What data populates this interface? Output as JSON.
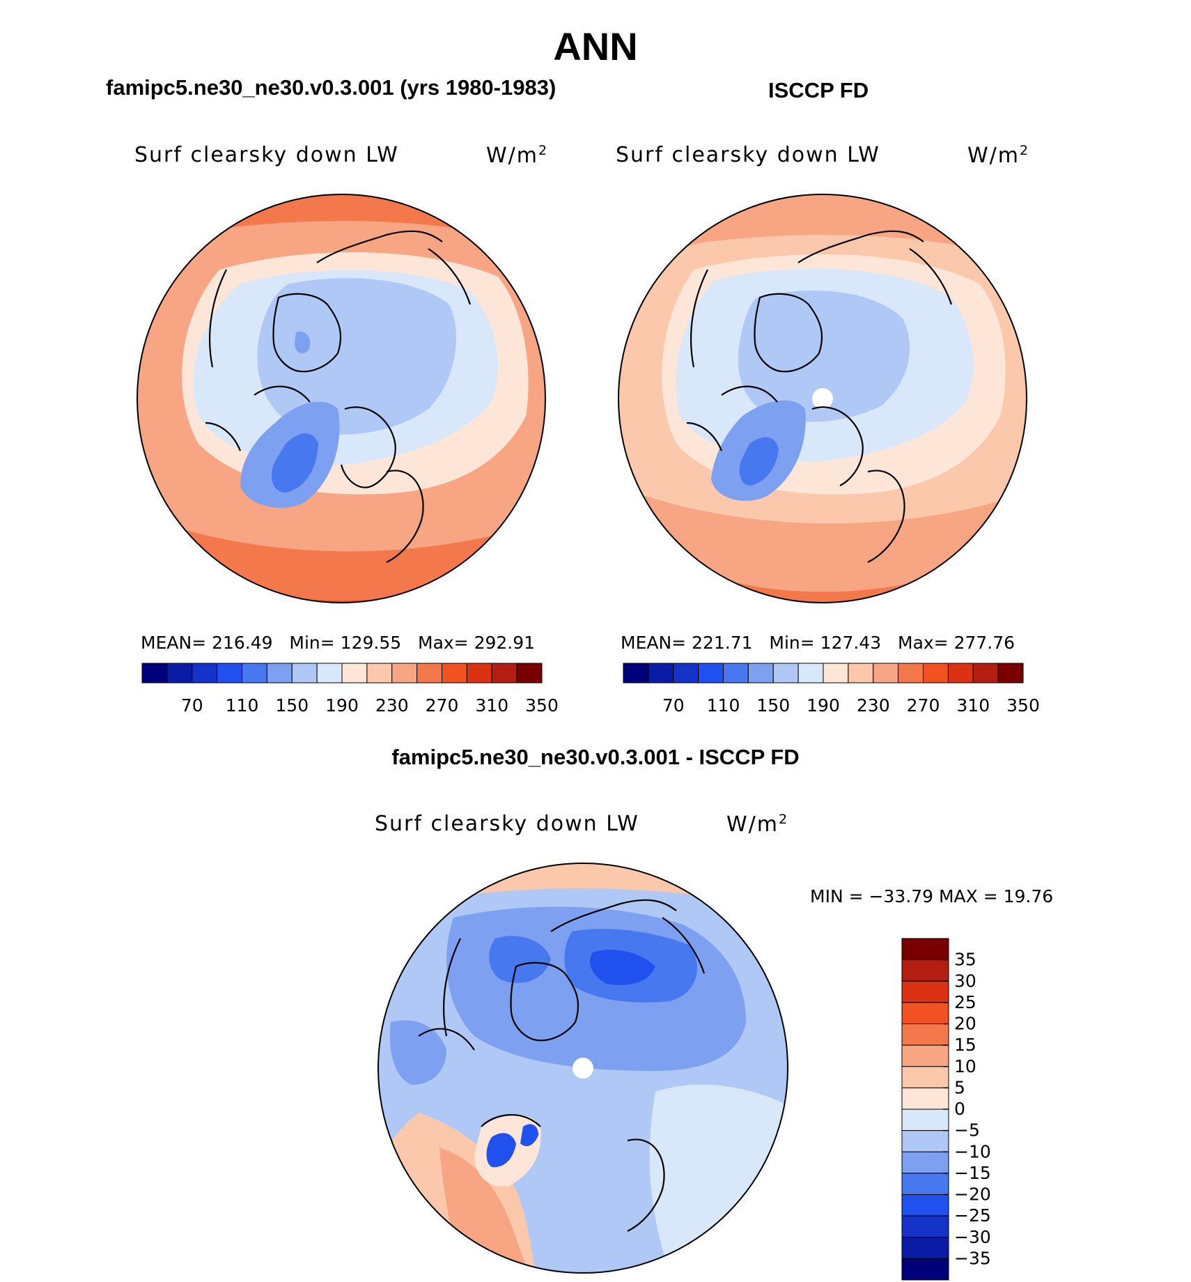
{
  "page_title": "ANN",
  "panels": {
    "model": {
      "header": "famipc5.ne30_ne30.v0.3.001 (yrs 1980-1983)",
      "variable": "Surf clearsky down LW",
      "units": "W/m",
      "units_exp": "2",
      "stats": {
        "mean_label": "MEAN=",
        "mean": "216.49",
        "min_label": "Min=",
        "min": "129.55",
        "max_label": "Max=",
        "max": "292.91"
      }
    },
    "obs": {
      "header": "ISCCP FD",
      "variable": "Surf clearsky down LW",
      "units": "W/m",
      "units_exp": "2",
      "stats": {
        "mean_label": "MEAN=",
        "mean": "221.71",
        "min_label": "Min=",
        "min": "127.43",
        "max_label": "Max=",
        "max": "277.76"
      }
    },
    "diff": {
      "header": "famipc5.ne30_ne30.v0.3.001 - ISCCP FD",
      "variable": "Surf clearsky down LW",
      "units": "W/m",
      "units_exp": "2",
      "stats_text": "MIN = −33.79 MAX =  19.76"
    }
  },
  "colorbars": {
    "horizontal": {
      "colors": [
        "#00007a",
        "#0a1ca6",
        "#1533c8",
        "#2050ee",
        "#4878ef",
        "#7ea0f0",
        "#b0c8f5",
        "#d8e8fa",
        "#fde6d8",
        "#fbc8ac",
        "#f7a582",
        "#f3784c",
        "#f25222",
        "#dc3214",
        "#b41e10",
        "#7a0000"
      ],
      "labels": [
        "70",
        "110",
        "150",
        "190",
        "230",
        "270",
        "310",
        "350"
      ]
    },
    "vertical": {
      "colors_bottom_to_top": [
        "#00007a",
        "#0a1ca6",
        "#1533c8",
        "#2050ee",
        "#4878ef",
        "#7ea0f0",
        "#b0c8f5",
        "#d8e8fa",
        "#fde6d8",
        "#fbc8ac",
        "#f7a582",
        "#f3784c",
        "#f25222",
        "#dc3214",
        "#b41e10",
        "#7a0000"
      ],
      "labels_top_to_bottom": [
        "35",
        "30",
        "25",
        "20",
        "15",
        "10",
        "5",
        "0",
        "−5",
        "−10",
        "−15",
        "−20",
        "−25",
        "−30",
        "−35"
      ]
    }
  },
  "chart_data": [
    {
      "type": "heatmap",
      "projection": "north-polar-stereographic",
      "title": "famipc5.ne30_ne30.v0.3.001 (yrs 1980-1983)",
      "variable": "Surf clearsky down LW",
      "units": "W/m2",
      "levels": [
        70,
        90,
        110,
        130,
        150,
        170,
        190,
        210,
        230,
        250,
        270,
        290,
        310,
        330,
        350
      ],
      "mean": 216.49,
      "min": 129.55,
      "max": 292.91
    },
    {
      "type": "heatmap",
      "projection": "north-polar-stereographic",
      "title": "ISCCP FD",
      "variable": "Surf clearsky down LW",
      "units": "W/m2",
      "levels": [
        70,
        90,
        110,
        130,
        150,
        170,
        190,
        210,
        230,
        250,
        270,
        290,
        310,
        330,
        350
      ],
      "mean": 221.71,
      "min": 127.43,
      "max": 277.76
    },
    {
      "type": "heatmap",
      "projection": "north-polar-stereographic",
      "title": "famipc5.ne30_ne30.v0.3.001 - ISCCP FD",
      "variable": "Surf clearsky down LW",
      "units": "W/m2",
      "levels": [
        -35,
        -30,
        -25,
        -20,
        -15,
        -10,
        -5,
        0,
        5,
        10,
        15,
        20,
        25,
        30,
        35
      ],
      "min": -33.79,
      "max": 19.76
    }
  ]
}
